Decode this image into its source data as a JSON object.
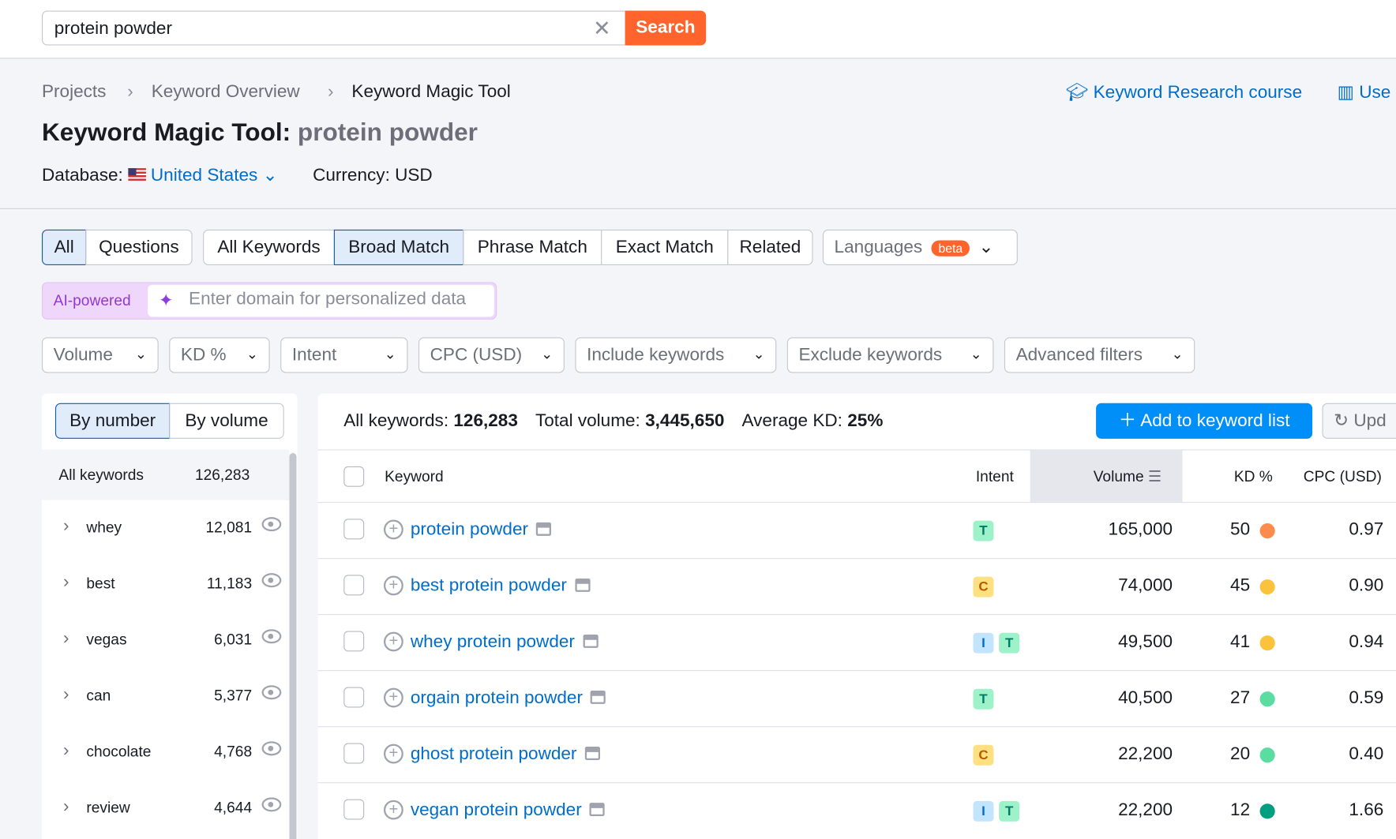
{
  "search": {
    "value": "protein powder",
    "button": "Search"
  },
  "breadcrumb": [
    "Projects",
    "Keyword Overview",
    "Keyword Magic Tool"
  ],
  "header_links": {
    "course": "Keyword Research course",
    "user_manual": "Use"
  },
  "title": {
    "label": "Keyword Magic Tool:",
    "query": "protein powder"
  },
  "database": {
    "label": "Database:",
    "value": "United States",
    "currency": "Currency: USD"
  },
  "tabs_type": [
    "All",
    "Questions"
  ],
  "tabs_match": [
    "All Keywords",
    "Broad Match",
    "Phrase Match",
    "Exact Match",
    "Related"
  ],
  "languages": {
    "label": "Languages",
    "badge": "beta"
  },
  "ai": {
    "label": "AI-powered",
    "placeholder": "Enter domain for personalized data"
  },
  "filters": [
    "Volume",
    "KD %",
    "Intent",
    "CPC (USD)",
    "Include keywords",
    "Exclude keywords",
    "Advanced filters"
  ],
  "groups": {
    "toggle": [
      "By number",
      "By volume"
    ],
    "all_label": "All keywords",
    "all_count": "126,283",
    "items": [
      {
        "name": "whey",
        "count": "12,081"
      },
      {
        "name": "best",
        "count": "11,183"
      },
      {
        "name": "vegas",
        "count": "6,031"
      },
      {
        "name": "can",
        "count": "5,377"
      },
      {
        "name": "chocolate",
        "count": "4,768"
      },
      {
        "name": "review",
        "count": "4,644"
      }
    ]
  },
  "summary": {
    "all_label": "All keywords:",
    "all": "126,283",
    "vol_label": "Total volume:",
    "vol": "3,445,650",
    "kd_label": "Average KD:",
    "kd": "25%"
  },
  "actions": {
    "add": "Add to keyword list",
    "update": "Upd"
  },
  "columns": [
    "Keyword",
    "Intent",
    "Volume",
    "KD %",
    "CPC (USD)"
  ],
  "colors": {
    "accent": "#ff642d",
    "blue": "#008ff8",
    "link": "#006dca"
  },
  "rows": [
    {
      "keyword": "protein powder",
      "intent": [
        "T"
      ],
      "volume": "165,000",
      "kd": "50",
      "kd_color": "#fd8c4c",
      "cpc": "0.97"
    },
    {
      "keyword": "best protein powder",
      "intent": [
        "C"
      ],
      "volume": "74,000",
      "kd": "45",
      "kd_color": "#fbc23b",
      "cpc": "0.90"
    },
    {
      "keyword": "whey protein powder",
      "intent": [
        "I",
        "T"
      ],
      "volume": "49,500",
      "kd": "41",
      "kd_color": "#fbc23b",
      "cpc": "0.94"
    },
    {
      "keyword": "orgain protein powder",
      "intent": [
        "T"
      ],
      "volume": "40,500",
      "kd": "27",
      "kd_color": "#59dda0",
      "cpc": "0.59"
    },
    {
      "keyword": "ghost protein powder",
      "intent": [
        "C"
      ],
      "volume": "22,200",
      "kd": "20",
      "kd_color": "#59dda0",
      "cpc": "0.40"
    },
    {
      "keyword": "vegan protein powder",
      "intent": [
        "I",
        "T"
      ],
      "volume": "22,200",
      "kd": "12",
      "kd_color": "#009f81",
      "cpc": "1.66"
    }
  ]
}
